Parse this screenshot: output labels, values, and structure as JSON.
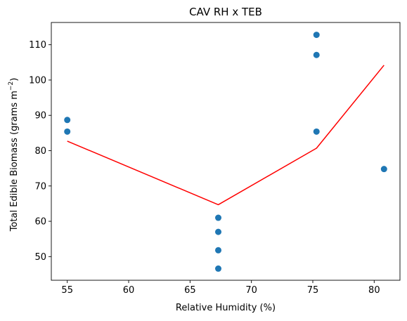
{
  "chart_data": {
    "type": "scatter",
    "title": "CAV RH x TEB",
    "xlabel": "Relative Humidity (%)",
    "ylabel_main": "Total Edible Biomass (grams m",
    "ylabel_sup": "−2",
    "ylabel_close": ")",
    "xlim": [
      53.7,
      82.1
    ],
    "ylim": [
      43.3,
      116.3
    ],
    "xticks": [
      55,
      60,
      65,
      70,
      75,
      80
    ],
    "yticks": [
      50,
      60,
      70,
      80,
      90,
      100,
      110
    ],
    "grid": false,
    "legend": false,
    "series": [
      {
        "kind": "scatter",
        "color": "#1f77b4",
        "points": [
          {
            "x": 55.0,
            "y": 88.7
          },
          {
            "x": 55.0,
            "y": 85.4
          },
          {
            "x": 67.3,
            "y": 61.0
          },
          {
            "x": 67.3,
            "y": 57.0
          },
          {
            "x": 67.3,
            "y": 51.8
          },
          {
            "x": 67.3,
            "y": 46.6
          },
          {
            "x": 75.3,
            "y": 112.8
          },
          {
            "x": 75.3,
            "y": 107.1
          },
          {
            "x": 75.3,
            "y": 85.4
          },
          {
            "x": 80.8,
            "y": 74.8
          }
        ]
      },
      {
        "kind": "line",
        "color": "#ff0000",
        "points": [
          {
            "x": 55.0,
            "y": 82.7
          },
          {
            "x": 67.3,
            "y": 64.7
          },
          {
            "x": 75.3,
            "y": 80.7
          },
          {
            "x": 80.8,
            "y": 104.2
          }
        ]
      }
    ]
  }
}
